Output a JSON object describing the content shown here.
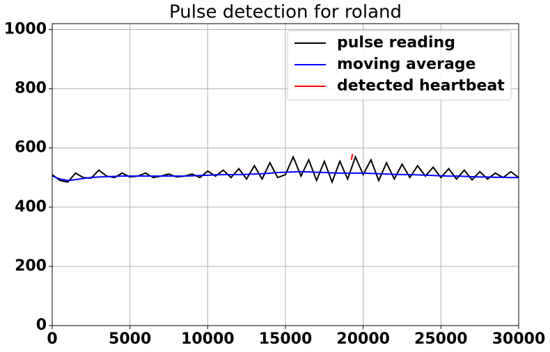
{
  "chart_data": {
    "type": "line",
    "title": "Pulse detection for roland",
    "x": [
      0,
      500,
      1000,
      1500,
      2000,
      2500,
      3000,
      3500,
      4000,
      4500,
      5000,
      5500,
      6000,
      6500,
      7000,
      7500,
      8000,
      8500,
      9000,
      9500,
      10000,
      10500,
      11000,
      11500,
      12000,
      12500,
      13000,
      13500,
      14000,
      14500,
      15000,
      15500,
      16000,
      16500,
      17000,
      17500,
      18000,
      18500,
      19000,
      19500,
      20000,
      20500,
      21000,
      21500,
      22000,
      22500,
      23000,
      23500,
      24000,
      24500,
      25000,
      25500,
      26000,
      26500,
      27000,
      27500,
      28000,
      28500,
      29000,
      29500,
      30000
    ],
    "series": [
      {
        "name": "pulse reading",
        "color": "#000000",
        "values": [
          510,
          490,
          485,
          515,
          500,
          498,
          525,
          505,
          500,
          515,
          502,
          505,
          515,
          500,
          505,
          512,
          502,
          505,
          512,
          500,
          522,
          505,
          525,
          500,
          530,
          495,
          540,
          495,
          550,
          500,
          510,
          570,
          505,
          560,
          490,
          555,
          485,
          555,
          495,
          570,
          510,
          560,
          490,
          550,
          495,
          545,
          500,
          540,
          505,
          535,
          500,
          530,
          495,
          525,
          492,
          520,
          495,
          515,
          500,
          520,
          500
        ]
      },
      {
        "name": "moving average",
        "color": "#0000ff",
        "values": [
          505,
          495,
          490,
          493,
          497,
          500,
          502,
          503,
          504,
          505,
          505,
          505,
          505,
          505,
          505,
          505,
          505,
          505,
          506,
          507,
          508,
          509,
          510,
          510,
          510,
          511,
          512,
          513,
          515,
          517,
          518,
          519,
          520,
          519,
          518,
          517,
          516,
          515,
          515,
          515,
          515,
          514,
          513,
          512,
          511,
          510,
          510,
          509,
          508,
          507,
          506,
          505,
          505,
          504,
          503,
          502,
          502,
          501,
          501,
          500,
          500
        ]
      },
      {
        "name": "detected heartbeat",
        "color": "#ff0000",
        "x": [
          19250,
          19300
        ],
        "values": [
          560,
          580
        ]
      }
    ],
    "xlim": [
      0,
      30000
    ],
    "xticks": [
      0,
      5000,
      10000,
      15000,
      20000,
      25000,
      30000
    ],
    "ylim": [
      0,
      1020
    ],
    "yticks": [
      0,
      200,
      400,
      600,
      800,
      1000
    ],
    "grid": true,
    "legend": "upper right"
  }
}
